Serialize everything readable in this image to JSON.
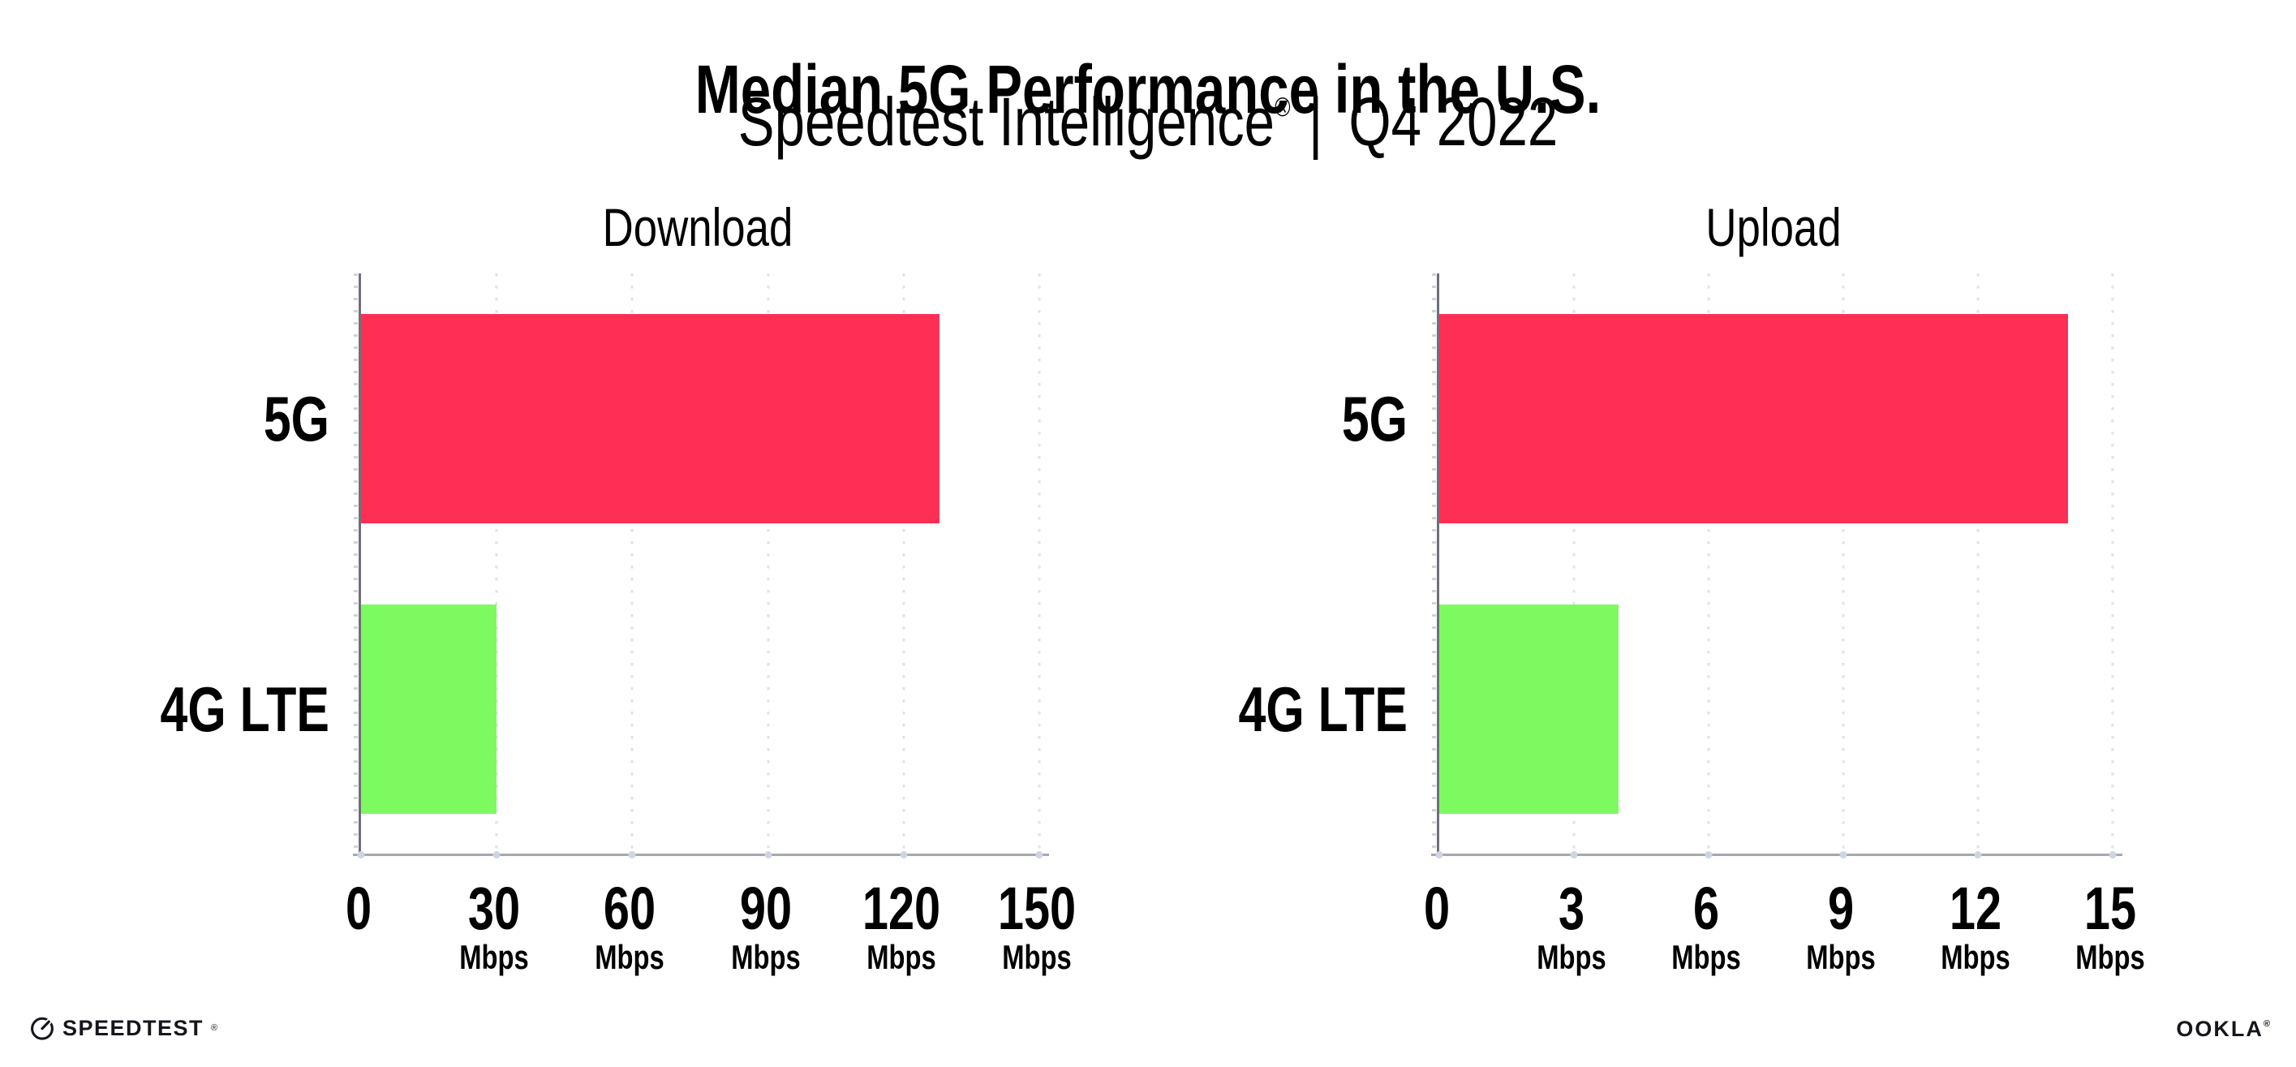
{
  "header": {
    "title": "Median 5G Performance in the U.S.",
    "subtitle_brand": "Speedtest Intelligence",
    "subtitle_reg": "®",
    "subtitle_separator": "|",
    "subtitle_period": "Q4 2022"
  },
  "chart_data": [
    {
      "type": "bar",
      "orientation": "horizontal",
      "title": "Download",
      "categories": [
        "5G",
        "4G LTE"
      ],
      "values": [
        128,
        30
      ],
      "unit": "Mbps",
      "xlim": [
        0,
        150
      ],
      "ticks": [
        0,
        30,
        60,
        90,
        120,
        150
      ],
      "grid": "dotted-vertical",
      "legend": "none",
      "bar_colors": [
        "#ff2e55",
        "#7dfa60"
      ]
    },
    {
      "type": "bar",
      "orientation": "horizontal",
      "title": "Upload",
      "categories": [
        "5G",
        "4G LTE"
      ],
      "values": [
        14,
        4
      ],
      "unit": "Mbps",
      "xlim": [
        0,
        15
      ],
      "ticks": [
        0,
        3,
        6,
        9,
        12,
        15
      ],
      "grid": "dotted-vertical",
      "legend": "none",
      "bar_colors": [
        "#ff2e55",
        "#7dfa60"
      ]
    }
  ],
  "footer": {
    "brand_left": "SPEEDTEST",
    "brand_left_reg": "®",
    "brand_left_icon": "speedtest-gauge-icon",
    "brand_right": "OOKLA",
    "brand_right_reg": "®"
  },
  "colors": {
    "bar_5g": "#ff2e55",
    "bar_4g_lte": "#7dfa60",
    "grid_dots": "#dfe2ec",
    "axis_y": "#6f6f78",
    "axis_x": "#a6a6ae",
    "tick_dot": "#cfd4e2",
    "text": "#000000",
    "background": "#ffffff"
  }
}
